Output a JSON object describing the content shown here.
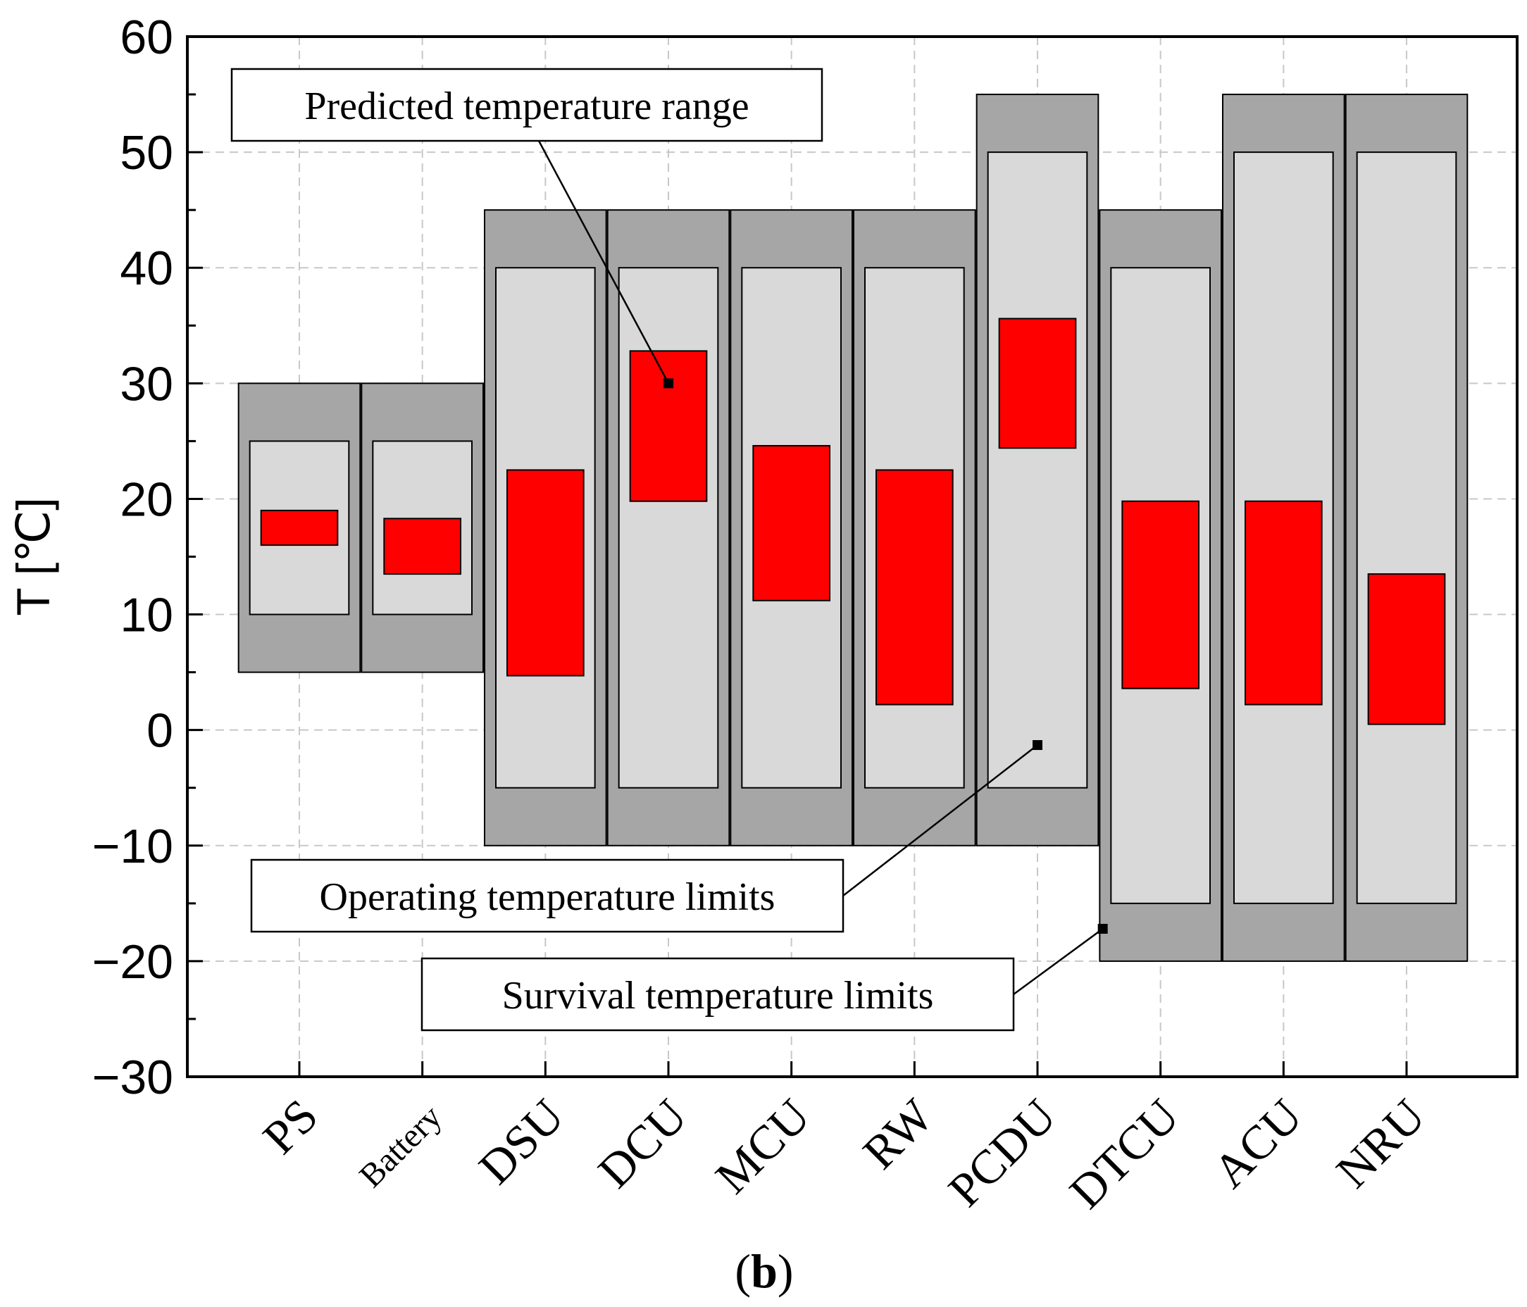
{
  "chart_data": {
    "type": "floating-bar",
    "panel_label": {
      "open": "(",
      "letter": "b",
      "close": ")"
    },
    "ylabel": "T [℃]",
    "xlabel": "",
    "ylim": [
      -30,
      60
    ],
    "yticks": [
      60,
      50,
      40,
      30,
      20,
      10,
      0,
      -10,
      -20,
      -30
    ],
    "ytick_labels": [
      "60",
      "50",
      "40",
      "30",
      "20",
      "10",
      "0",
      "−10",
      "−20",
      "−30"
    ],
    "grid": true,
    "categories": [
      "PS",
      "Battery",
      "DSU",
      "DCU",
      "MCU",
      "RW",
      "PCDU",
      "DTCU",
      "ACU",
      "NRU"
    ],
    "series": [
      {
        "name": "Survival temperature limits",
        "color": "#a6a6a6",
        "ranges": [
          [
            5,
            30
          ],
          [
            5,
            30
          ],
          [
            -10,
            45
          ],
          [
            -10,
            45
          ],
          [
            -10,
            45
          ],
          [
            -10,
            45
          ],
          [
            -10,
            55
          ],
          [
            -20,
            45
          ],
          [
            -20,
            55
          ],
          [
            -20,
            55
          ]
        ]
      },
      {
        "name": "Operating temperature limits",
        "color": "#d9d9d9",
        "ranges": [
          [
            10,
            25
          ],
          [
            10,
            25
          ],
          [
            -5,
            40
          ],
          [
            -5,
            40
          ],
          [
            -5,
            40
          ],
          [
            -5,
            40
          ],
          [
            -5,
            50
          ],
          [
            -15,
            40
          ],
          [
            -15,
            50
          ],
          [
            -15,
            50
          ]
        ]
      },
      {
        "name": "Predicted temperature range",
        "color": "#ff0000",
        "ranges": [
          [
            16,
            19
          ],
          [
            13.5,
            18.3
          ],
          [
            4.7,
            22.5
          ],
          [
            19.8,
            32.8
          ],
          [
            11.2,
            24.6
          ],
          [
            2.2,
            22.5
          ],
          [
            24.4,
            35.6
          ],
          [
            3.6,
            19.8
          ],
          [
            2.2,
            19.8
          ],
          [
            0.5,
            13.5
          ]
        ]
      }
    ],
    "annotations": [
      {
        "name": "predicted",
        "text": "Predicted temperature range",
        "target_category": "DCU",
        "target_value": 30
      },
      {
        "name": "operating",
        "text": "Operating temperature limits",
        "target_category": "PCDU",
        "target_value": -1.3
      },
      {
        "name": "survival",
        "text": "Survival temperature limits",
        "target_category": "DTCU",
        "target_value": -17.2
      }
    ]
  }
}
